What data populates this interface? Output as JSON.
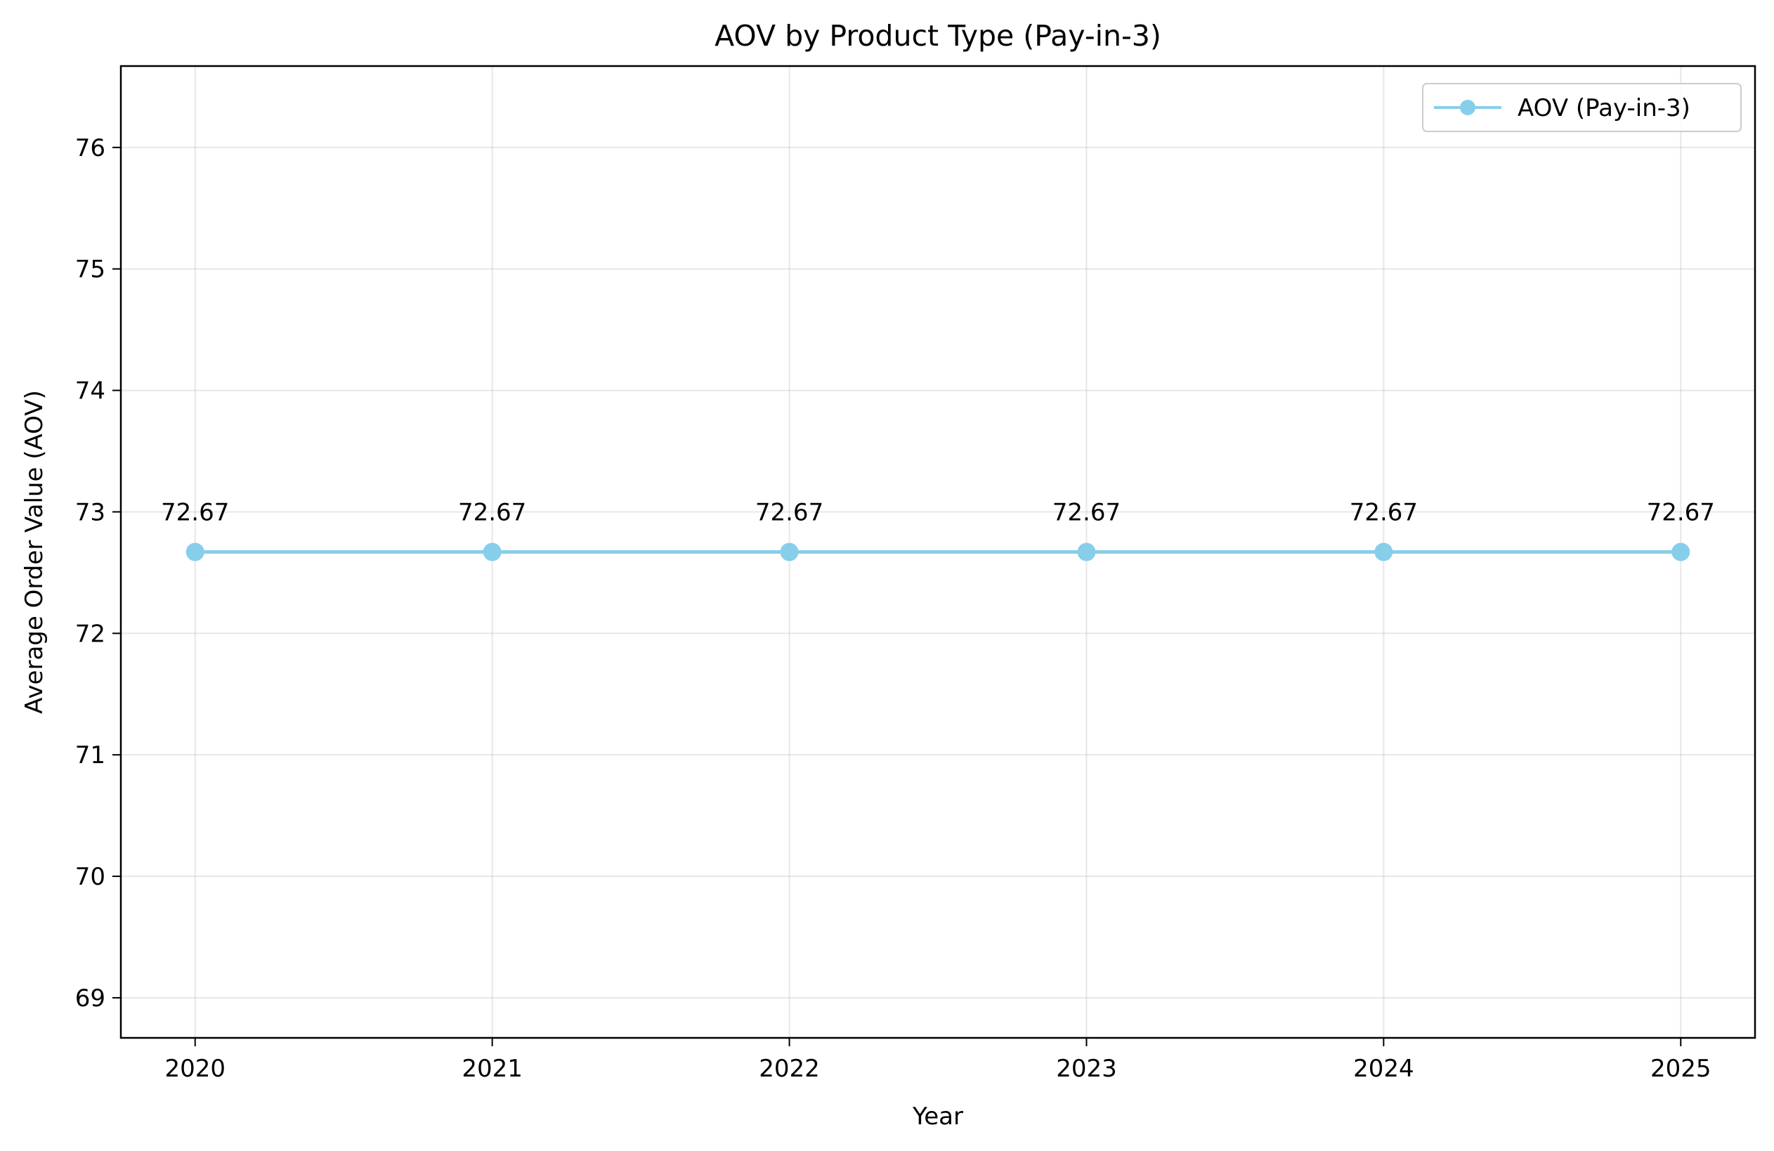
{
  "chart_data": {
    "type": "line",
    "title": "AOV by Product Type (Pay-in-3)",
    "xlabel": "Year",
    "ylabel": "Average Order Value (AOV)",
    "x": [
      2020,
      2021,
      2022,
      2023,
      2024,
      2025
    ],
    "x_tick_labels": [
      "2020",
      "2021",
      "2022",
      "2023",
      "2024",
      "2025"
    ],
    "series": [
      {
        "name": "AOV (Pay-in-3)",
        "values": [
          72.67,
          72.67,
          72.67,
          72.67,
          72.67,
          72.67
        ],
        "data_labels": [
          "72.67",
          "72.67",
          "72.67",
          "72.67",
          "72.67",
          "72.67"
        ],
        "color": "#87CEEB",
        "marker": "circle"
      }
    ],
    "xlim": [
      2019.75,
      2025.25
    ],
    "ylim": [
      68.67,
      76.67
    ],
    "y_ticks": [
      69,
      70,
      71,
      72,
      73,
      74,
      75,
      76
    ],
    "y_tick_labels": [
      "69",
      "70",
      "71",
      "72",
      "73",
      "74",
      "75",
      "76"
    ],
    "grid": true,
    "legend_position": "top-right"
  }
}
